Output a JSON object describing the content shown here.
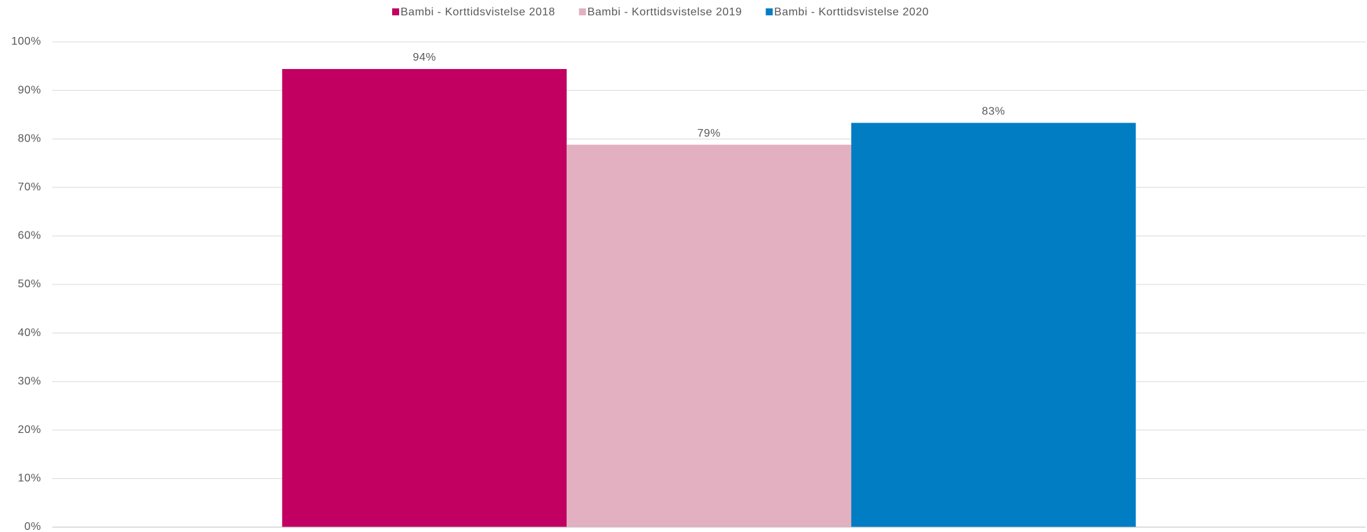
{
  "chart_data": {
    "type": "bar",
    "categories": [
      null
    ],
    "series": [
      {
        "name": "Bambi - Korttidsvistelse 2018",
        "color": "#c20062",
        "values": [
          94.4
        ],
        "value_labels": [
          "94%"
        ]
      },
      {
        "name": "Bambi - Korttidsvistelse 2019",
        "color": "#e2b0c0",
        "values": [
          78.8
        ],
        "value_labels": [
          "79%"
        ]
      },
      {
        "name": "Bambi - Korttidsvistelse 2020",
        "color": "#007dc3",
        "values": [
          83.3
        ],
        "value_labels": [
          "83%"
        ]
      }
    ],
    "ylim": [
      0,
      100
    ],
    "yticks": [
      {
        "value": 0,
        "label": "0%"
      },
      {
        "value": 10,
        "label": "10%"
      },
      {
        "value": 20,
        "label": "20%"
      },
      {
        "value": 30,
        "label": "30%"
      },
      {
        "value": 40,
        "label": "40%"
      },
      {
        "value": 50,
        "label": "50%"
      },
      {
        "value": 60,
        "label": "60%"
      },
      {
        "value": 70,
        "label": "70%"
      },
      {
        "value": 80,
        "label": "80%"
      },
      {
        "value": 90,
        "label": "90%"
      },
      {
        "value": 100,
        "label": "100%"
      }
    ],
    "grid": true,
    "legend": "top"
  }
}
